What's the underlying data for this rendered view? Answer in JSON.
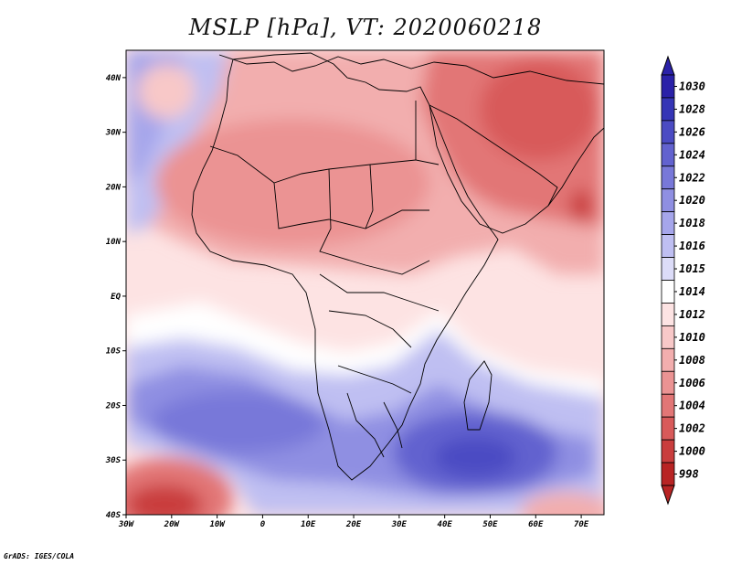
{
  "title": "MSLP [hPa], VT: 2020060218",
  "credit": "GrADS: IGES/COLA",
  "map": {
    "lon_range": [
      -30,
      75
    ],
    "lat_range": [
      -40,
      45
    ],
    "lon_ticks": [
      "30W",
      "20W",
      "10W",
      "0",
      "10E",
      "20E",
      "30E",
      "40E",
      "50E",
      "60E",
      "70E"
    ],
    "lat_ticks": [
      "40S",
      "30S",
      "20S",
      "10S",
      "EQ",
      "10N",
      "20N",
      "30N",
      "40N"
    ]
  },
  "pressure_regions": [
    {
      "name": "north-africa-low",
      "hPa": "1008"
    },
    {
      "name": "middle-east-low",
      "hPa": "1004"
    },
    {
      "name": "arabian-sea-low",
      "hPa": "1002"
    },
    {
      "name": "azores-high-edge",
      "hPa": "1018"
    },
    {
      "name": "azores-local-low",
      "hPa": "1010"
    },
    {
      "name": "south-atlantic-high",
      "hPa": "1022"
    },
    {
      "name": "indian-ocean-high",
      "hPa": "1026"
    },
    {
      "name": "southern-ocean-low-west",
      "hPa": "1000"
    },
    {
      "name": "southern-ocean-low-east",
      "hPa": "1008"
    }
  ],
  "colorbar": {
    "levels": [
      "1030",
      "1028",
      "1026",
      "1024",
      "1022",
      "1020",
      "1018",
      "1016",
      "1015",
      "1014",
      "1012",
      "1010",
      "1008",
      "1006",
      "1004",
      "1002",
      "1000",
      "998"
    ],
    "colors": [
      "#2a21a8",
      "#3535b6",
      "#4b4bc3",
      "#6262cf",
      "#7878d9",
      "#8f8fe2",
      "#a6a6eb",
      "#bfbff2",
      "#dcdcf8",
      "#ffffff",
      "#fde3e3",
      "#f8c8c8",
      "#f2aeae",
      "#eb9393",
      "#e27676",
      "#d85a5a",
      "#c93d3d",
      "#b82424"
    ],
    "top_arrow_color": "#2a21a8",
    "bottom_arrow_color": "#b82424"
  }
}
